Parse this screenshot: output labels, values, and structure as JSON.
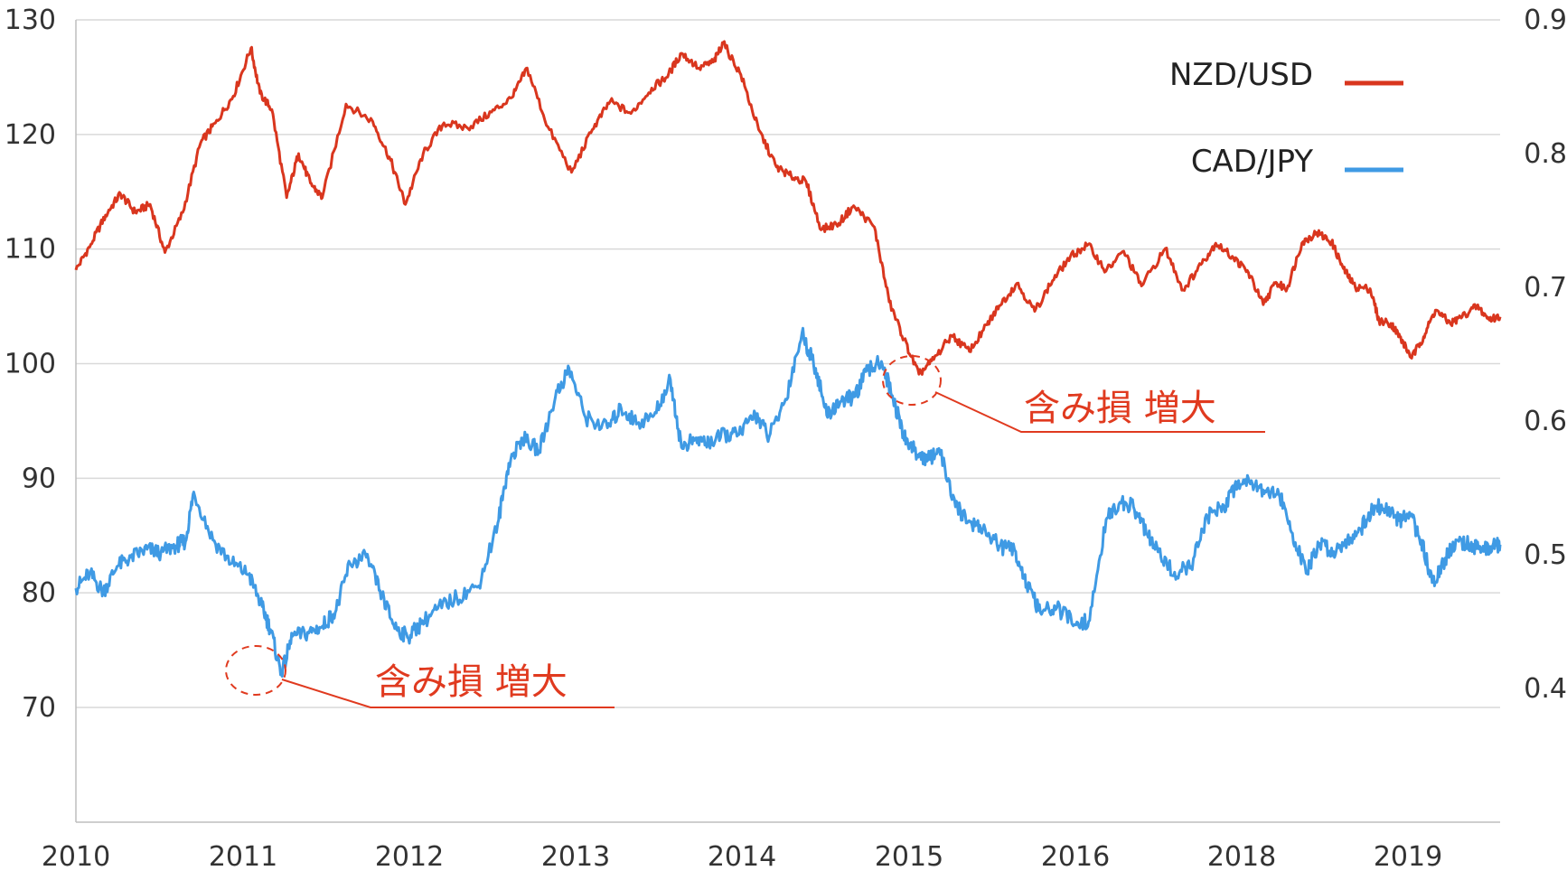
{
  "chart_data": {
    "type": "line",
    "x_categories": [
      "2010",
      "2011",
      "2012",
      "2013",
      "2014",
      "2015",
      "2016",
      "2018",
      "2019"
    ],
    "left_axis": {
      "ylim": [
        60,
        130
      ],
      "ticks": [
        70,
        80,
        90,
        100,
        110,
        120,
        130
      ]
    },
    "right_axis": {
      "ylim": [
        0.35,
        0.9
      ],
      "ticks": [
        0.4,
        0.5,
        0.6,
        0.7,
        0.8,
        0.9
      ]
    },
    "grid": true,
    "legend_position": "top-right",
    "series": [
      {
        "name": "NZD/USD",
        "axis": "right",
        "color": "#d9361e",
        "values": [
          [
            0.0,
            0.713
          ],
          [
            0.25,
            0.732
          ],
          [
            0.5,
            0.754
          ],
          [
            0.75,
            0.77
          ],
          [
            1.0,
            0.756
          ],
          [
            1.25,
            0.762
          ],
          [
            1.5,
            0.726
          ],
          [
            1.8,
            0.756
          ],
          [
            2.1,
            0.808
          ],
          [
            2.35,
            0.823
          ],
          [
            2.65,
            0.843
          ],
          [
            2.95,
            0.879
          ],
          [
            3.1,
            0.845
          ],
          [
            3.3,
            0.833
          ],
          [
            3.55,
            0.767
          ],
          [
            3.75,
            0.8
          ],
          [
            3.95,
            0.778
          ],
          [
            4.15,
            0.767
          ],
          [
            4.55,
            0.837
          ],
          [
            5.0,
            0.824
          ],
          [
            5.3,
            0.795
          ],
          [
            5.55,
            0.762
          ],
          [
            5.85,
            0.8
          ],
          [
            6.2,
            0.823
          ],
          [
            6.6,
            0.819
          ],
          [
            7.0,
            0.831
          ],
          [
            7.35,
            0.842
          ],
          [
            7.6,
            0.864
          ],
          [
            7.95,
            0.82
          ],
          [
            8.35,
            0.786
          ],
          [
            8.7,
            0.818
          ],
          [
            9.0,
            0.839
          ],
          [
            9.35,
            0.83
          ],
          [
            9.7,
            0.849
          ],
          [
            9.95,
            0.857
          ],
          [
            10.2,
            0.875
          ],
          [
            10.5,
            0.864
          ],
          [
            10.75,
            0.869
          ],
          [
            10.9,
            0.883
          ],
          [
            11.2,
            0.859
          ],
          [
            11.5,
            0.818
          ],
          [
            11.8,
            0.79
          ],
          [
            12.05,
            0.783
          ],
          [
            12.3,
            0.779
          ],
          [
            12.55,
            0.743
          ],
          [
            12.85,
            0.748
          ],
          [
            13.1,
            0.761
          ],
          [
            13.45,
            0.745
          ],
          [
            13.7,
            0.689
          ],
          [
            13.95,
            0.661
          ],
          [
            14.2,
            0.635
          ],
          [
            14.45,
            0.646
          ],
          [
            14.75,
            0.664
          ],
          [
            15.05,
            0.652
          ],
          [
            15.35,
            0.672
          ],
          [
            15.55,
            0.686
          ],
          [
            15.85,
            0.703
          ],
          [
            16.15,
            0.682
          ],
          [
            16.45,
            0.705
          ],
          [
            16.75,
            0.723
          ],
          [
            17.05,
            0.732
          ],
          [
            17.35,
            0.712
          ],
          [
            17.65,
            0.727
          ],
          [
            17.95,
            0.701
          ],
          [
            18.35,
            0.729
          ],
          [
            18.65,
            0.698
          ],
          [
            18.95,
            0.717
          ],
          [
            19.2,
            0.733
          ],
          [
            19.5,
            0.722
          ],
          [
            19.75,
            0.711
          ],
          [
            20.0,
            0.687
          ],
          [
            20.2,
            0.703
          ],
          [
            20.4,
            0.699
          ],
          [
            20.65,
            0.733
          ],
          [
            20.9,
            0.741
          ],
          [
            21.15,
            0.734
          ],
          [
            21.35,
            0.714
          ],
          [
            21.55,
            0.7
          ],
          [
            21.8,
            0.699
          ],
          [
            21.95,
            0.675
          ],
          [
            22.15,
            0.673
          ],
          [
            22.3,
            0.663
          ],
          [
            22.5,
            0.647
          ],
          [
            22.7,
            0.663
          ],
          [
            22.9,
            0.683
          ],
          [
            23.15,
            0.673
          ],
          [
            23.35,
            0.678
          ],
          [
            23.6,
            0.686
          ],
          [
            23.8,
            0.676
          ],
          [
            23.99,
            0.678
          ]
        ]
      },
      {
        "name": "CAD/JPY",
        "axis": "left",
        "color": "#3f9ae4",
        "values": [
          [
            0.0,
            80.4
          ],
          [
            0.25,
            81.7
          ],
          [
            0.5,
            80.1
          ],
          [
            0.75,
            82.3
          ],
          [
            1.0,
            83.1
          ],
          [
            1.3,
            83.8
          ],
          [
            1.55,
            83.5
          ],
          [
            1.85,
            84.2
          ],
          [
            2.0,
            84.5
          ],
          [
            2.15,
            88.8
          ],
          [
            2.5,
            84.6
          ],
          [
            2.85,
            82.6
          ],
          [
            3.15,
            81.6
          ],
          [
            3.4,
            78.8
          ],
          [
            3.55,
            76.8
          ],
          [
            3.75,
            72.9
          ],
          [
            3.95,
            76.2
          ],
          [
            4.25,
            76.5
          ],
          [
            4.5,
            77.1
          ],
          [
            4.75,
            78.5
          ],
          [
            5.0,
            82.6
          ],
          [
            5.3,
            83.1
          ],
          [
            5.55,
            80.2
          ],
          [
            5.8,
            77.2
          ],
          [
            6.05,
            76.1
          ],
          [
            6.3,
            77.3
          ],
          [
            6.6,
            78.6
          ],
          [
            6.95,
            79.6
          ],
          [
            7.35,
            80.6
          ],
          [
            7.7,
            86.1
          ],
          [
            7.9,
            91.3
          ],
          [
            8.15,
            93.5
          ],
          [
            8.45,
            92.4
          ],
          [
            8.75,
            97.1
          ],
          [
            9.0,
            99.6
          ],
          [
            9.3,
            95.3
          ],
          [
            9.7,
            94.4
          ],
          [
            9.95,
            96.1
          ],
          [
            10.25,
            94.8
          ],
          [
            10.55,
            95.5
          ],
          [
            10.85,
            98.6
          ],
          [
            11.05,
            92.7
          ],
          [
            11.3,
            93.4
          ],
          [
            11.55,
            93.1
          ],
          [
            11.85,
            93.8
          ],
          [
            12.1,
            93.8
          ],
          [
            12.4,
            95.6
          ],
          [
            12.65,
            93.6
          ],
          [
            12.95,
            96.9
          ],
          [
            13.25,
            102.7
          ],
          [
            13.5,
            99.6
          ],
          [
            13.7,
            95.5
          ],
          [
            13.95,
            96.7
          ],
          [
            14.2,
            97.1
          ],
          [
            14.45,
            99.4
          ],
          [
            14.7,
            100.2
          ],
          [
            14.9,
            97.2
          ],
          [
            15.1,
            93.8
          ],
          [
            15.3,
            92.4
          ],
          [
            15.55,
            91.6
          ],
          [
            15.75,
            92.6
          ],
          [
            16.05,
            87.5
          ],
          [
            16.3,
            86.3
          ],
          [
            16.55,
            85.6
          ],
          [
            16.85,
            84.1
          ],
          [
            17.15,
            83.6
          ],
          [
            17.35,
            80.7
          ],
          [
            17.6,
            78.3
          ],
          [
            17.9,
            78.7
          ],
          [
            18.25,
            77.2
          ],
          [
            18.5,
            77.6
          ],
          [
            18.8,
            86.4
          ],
          [
            19.05,
            87.9
          ],
          [
            19.3,
            87.5
          ],
          [
            19.55,
            85.1
          ],
          [
            19.8,
            83.1
          ],
          [
            20.05,
            81.8
          ],
          [
            20.35,
            82.3
          ],
          [
            20.65,
            86.6
          ],
          [
            20.95,
            87.6
          ],
          [
            21.2,
            89.6
          ],
          [
            21.45,
            89.8
          ],
          [
            21.7,
            88.9
          ],
          [
            21.95,
            88.7
          ],
          [
            22.2,
            85.2
          ],
          [
            22.45,
            81.7
          ],
          [
            22.7,
            84.3
          ],
          [
            22.95,
            83.6
          ],
          [
            23.2,
            84.6
          ],
          [
            23.45,
            85.6
          ],
          [
            23.7,
            87.6
          ],
          [
            23.95,
            87.2
          ],
          [
            24.15,
            86.3
          ],
          [
            24.35,
            86.7
          ],
          [
            24.55,
            84.6
          ],
          [
            24.75,
            80.9
          ],
          [
            24.95,
            82.6
          ],
          [
            25.2,
            84.6
          ],
          [
            25.45,
            84.2
          ],
          [
            25.65,
            83.6
          ],
          [
            25.85,
            84.1
          ],
          [
            25.99,
            84.2
          ]
        ]
      }
    ],
    "annotations": [
      {
        "text": "含み損 増大"
      },
      {
        "text": "含み損 増大"
      }
    ]
  }
}
